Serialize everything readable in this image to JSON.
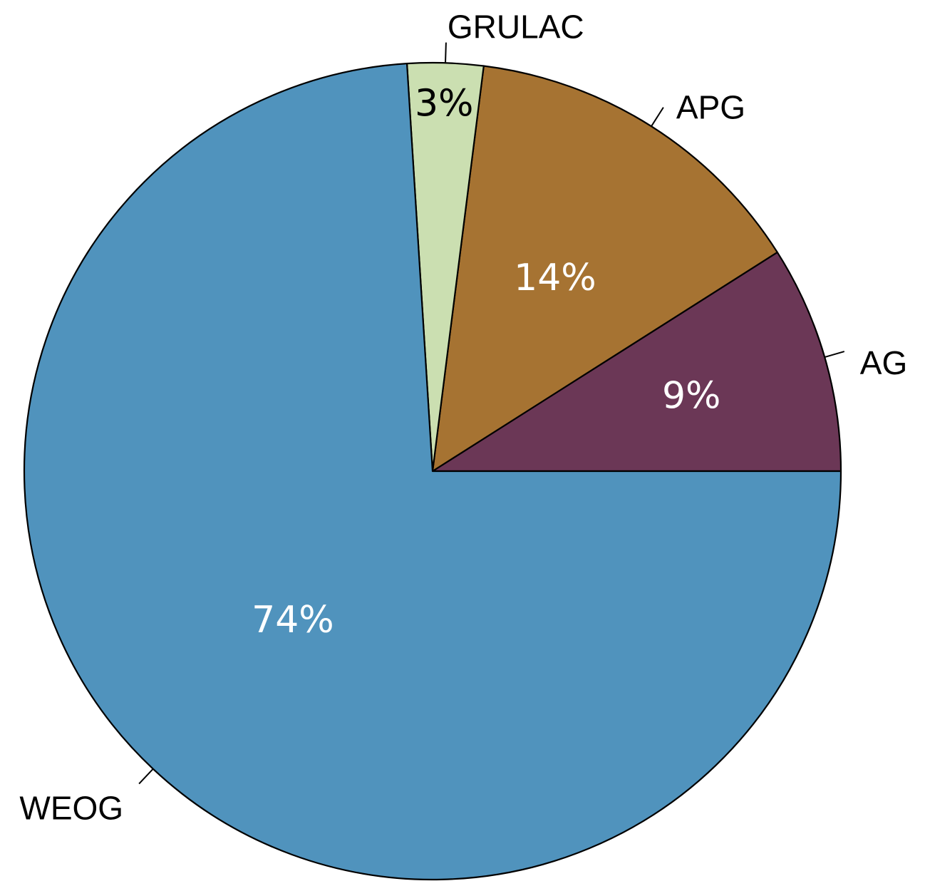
{
  "chart_data": {
    "type": "pie",
    "title": "",
    "slices": [
      {
        "label": "AG",
        "value": 9,
        "value_label": "9%",
        "color": "#6b3756",
        "text_color": "#ffffff"
      },
      {
        "label": "APG",
        "value": 14,
        "value_label": "14%",
        "color": "#a67332",
        "text_color": "#ffffff"
      },
      {
        "label": "GRULAC",
        "value": 3,
        "value_label": "3%",
        "color": "#cbdfb1",
        "text_color": "#000000"
      },
      {
        "label": "WEOG",
        "value": 74,
        "value_label": "74%",
        "color": "#5093bd",
        "text_color": "#ffffff"
      }
    ],
    "start_angle_deg": 0,
    "direction": "counterclockwise",
    "legend": "none"
  }
}
